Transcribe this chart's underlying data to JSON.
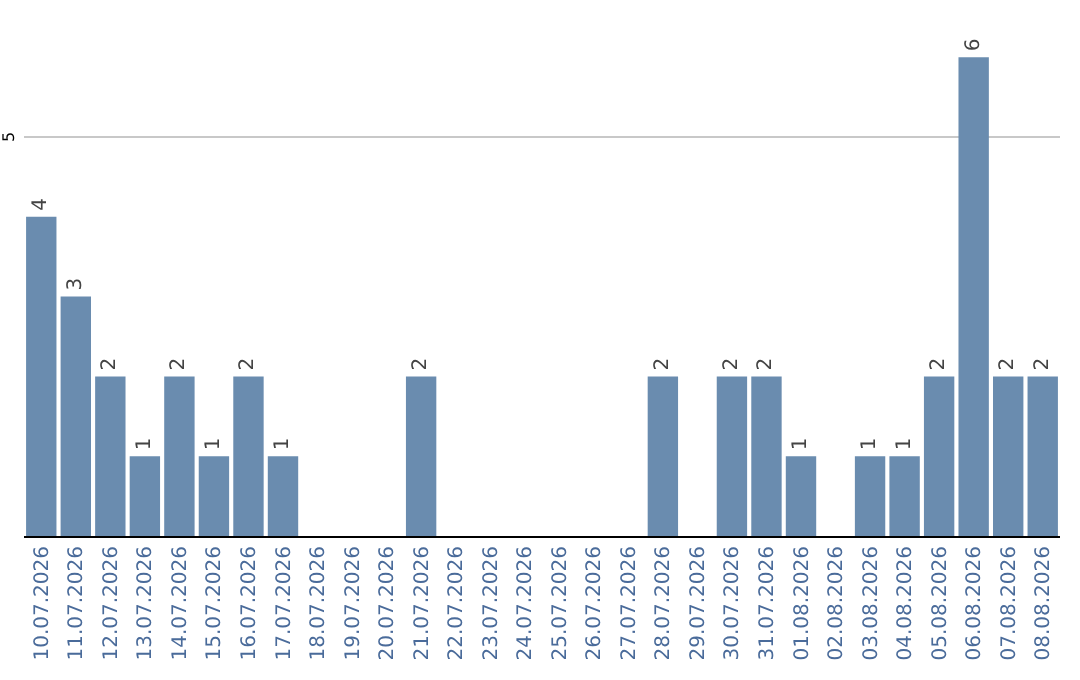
{
  "chart_data": {
    "type": "bar",
    "categories": [
      "10.07.2026",
      "11.07.2026",
      "12.07.2026",
      "13.07.2026",
      "14.07.2026",
      "15.07.2026",
      "16.07.2026",
      "17.07.2026",
      "18.07.2026",
      "19.07.2026",
      "20.07.2026",
      "21.07.2026",
      "22.07.2026",
      "23.07.2026",
      "24.07.2026",
      "25.07.2026",
      "26.07.2026",
      "27.07.2026",
      "28.07.2026",
      "29.07.2026",
      "30.07.2026",
      "31.07.2026",
      "01.08.2026",
      "02.08.2026",
      "03.08.2026",
      "04.08.2026",
      "05.08.2026",
      "06.08.2026",
      "07.08.2026",
      "08.08.2026"
    ],
    "values": [
      4,
      3,
      2,
      1,
      2,
      1,
      2,
      1,
      0,
      0,
      0,
      2,
      0,
      0,
      0,
      0,
      0,
      0,
      2,
      0,
      2,
      2,
      1,
      0,
      1,
      1,
      2,
      6,
      2,
      2
    ],
    "value_labels": [
      "4",
      "3",
      "2",
      "1",
      "2",
      "1",
      "2",
      "1",
      null,
      null,
      null,
      "2",
      null,
      null,
      null,
      null,
      null,
      null,
      "2",
      null,
      "2",
      "2",
      "1",
      null,
      "1",
      "1",
      "2",
      "6",
      "2",
      "2"
    ],
    "color": "#6a8caf",
    "ref_lines": [
      {
        "axis": "y",
        "value": 5,
        "label": "5",
        "color": "#c8c8c8"
      }
    ],
    "legend": false
  }
}
